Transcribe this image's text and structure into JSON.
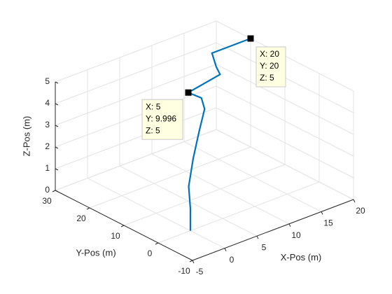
{
  "chart_data": {
    "type": "line3d",
    "xlabel": "X-Pos (m)",
    "ylabel": "Y-Pos (m)",
    "zlabel": "Z-Pos (m)",
    "xlim": [
      -5,
      20
    ],
    "ylim": [
      -10,
      30
    ],
    "zlim": [
      0,
      5
    ],
    "xticks": [
      -5,
      0,
      5,
      10,
      15,
      20
    ],
    "yticks": [
      -10,
      0,
      10,
      20,
      30
    ],
    "zticks": [
      0,
      1,
      2,
      3,
      4,
      5
    ],
    "grid": true,
    "series": [
      {
        "color": "#0072bd",
        "x": [
          0,
          0,
          0,
          1.5,
          4,
          7,
          7.3,
          5,
          11,
          12,
          14,
          20
        ],
        "y": [
          0,
          0,
          0.5,
          2,
          5,
          9,
          10.5,
          9.996,
          12,
          15,
          20,
          20
        ],
        "z": [
          0,
          1,
          2,
          3,
          3.7,
          4.1,
          4.45,
          5,
          5,
          5,
          5,
          5
        ]
      }
    ],
    "datatips": [
      {
        "x": {
          "value": 5,
          "label": "X: 5"
        },
        "y": {
          "value": 9.996,
          "label": "Y: 9.996"
        },
        "z": {
          "value": 5,
          "label": "Z: 5"
        }
      },
      {
        "x": {
          "value": 20,
          "label": "X: 20"
        },
        "y": {
          "value": 20,
          "label": "Y: 20"
        },
        "z": {
          "value": 5,
          "label": "Z: 5"
        }
      }
    ]
  }
}
